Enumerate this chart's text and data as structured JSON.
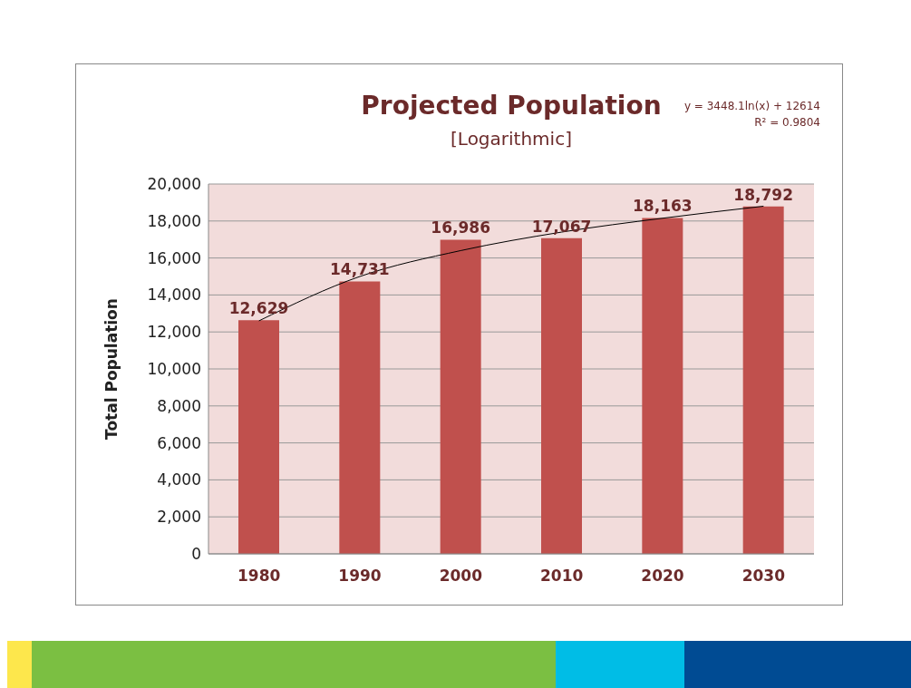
{
  "chart_data": {
    "type": "bar",
    "title": "Projected Population",
    "subtitle": "[Logarithmic]",
    "ylabel": "Total Population",
    "annotations": [
      "y = 3448.1ln(x) + 12614",
      "R² = 0.9804"
    ],
    "categories": [
      "1980",
      "1990",
      "2000",
      "2010",
      "2020",
      "2030"
    ],
    "series": [
      {
        "color": "#c0504d",
        "values": [
          12629,
          14731,
          16986,
          17067,
          18163,
          18792
        ],
        "value_labels": [
          "12,629",
          "14,731",
          "16,986",
          "17,067",
          "18,163",
          "18,792"
        ]
      },
      {
        "type": "line",
        "color": "#000000",
        "values": [
          12600,
          15000,
          16400,
          17400,
          18150,
          18800
        ]
      }
    ],
    "ylim": [
      0,
      20000
    ],
    "yticks": [
      {
        "value": 0,
        "label": "0"
      },
      {
        "value": 2000,
        "label": "2,000"
      },
      {
        "value": 4000,
        "label": "4,000"
      },
      {
        "value": 6000,
        "label": "6,000"
      },
      {
        "value": 8000,
        "label": "8,000"
      },
      {
        "value": 10000,
        "label": "10,000"
      },
      {
        "value": 12000,
        "label": "12,000"
      },
      {
        "value": 14000,
        "label": "14,000"
      },
      {
        "value": 16000,
        "label": "16,000"
      },
      {
        "value": 18000,
        "label": "18,000"
      },
      {
        "value": 20000,
        "label": "20,000"
      }
    ],
    "grid": "y",
    "legend": false
  }
}
